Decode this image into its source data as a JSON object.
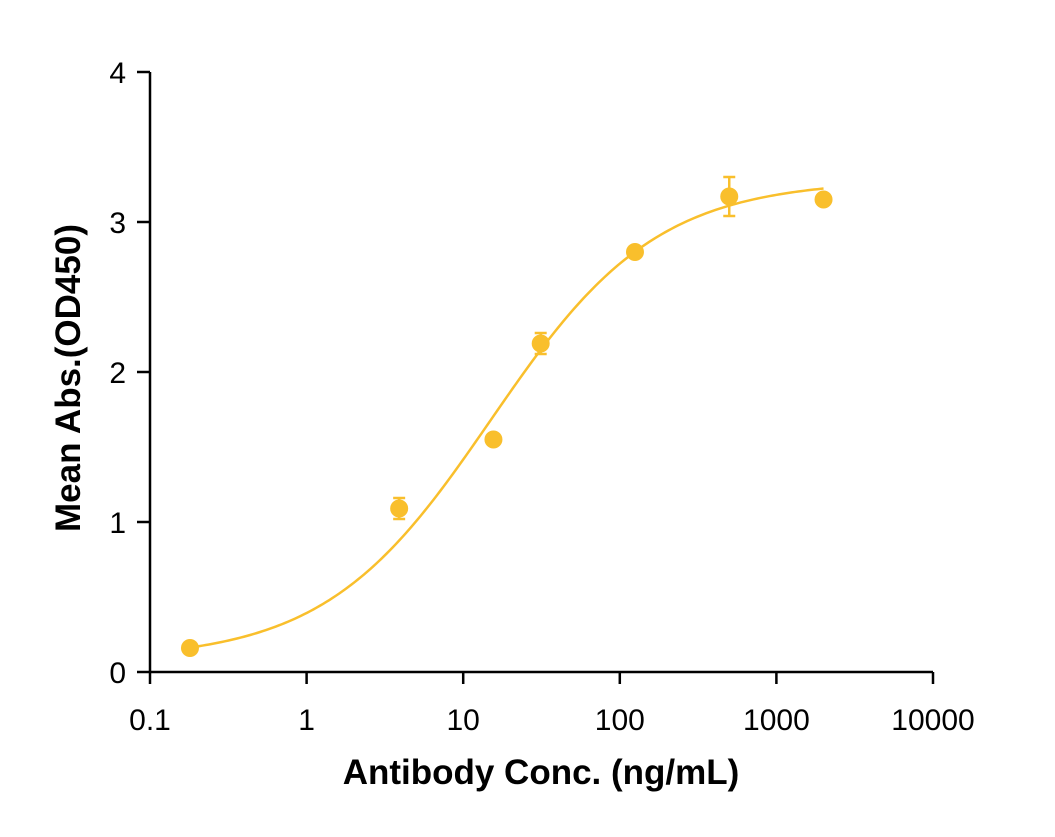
{
  "chart_data": {
    "type": "scatter",
    "title": "",
    "xlabel": "Antibody Conc. (ng/mL)",
    "ylabel": "Mean Abs.(OD450)",
    "x_scale": "log",
    "xlim": [
      0.1,
      10000
    ],
    "ylim": [
      0,
      4
    ],
    "x_ticks": [
      0.1,
      1,
      10,
      100,
      1000,
      10000
    ],
    "x_tick_labels": [
      "0.1",
      "1",
      "10",
      "100",
      "1000",
      "10000"
    ],
    "y_ticks": [
      0,
      1,
      2,
      3,
      4
    ],
    "y_tick_labels": [
      "0",
      "1",
      "2",
      "3",
      "4"
    ],
    "grid": false,
    "legend": "none",
    "color": "#F9BF2C",
    "series": [
      {
        "points": [
          {
            "x": 0.18,
            "y": 0.16,
            "err": 0.02
          },
          {
            "x": 3.9,
            "y": 1.09,
            "err": 0.07
          },
          {
            "x": 15.6,
            "y": 1.55,
            "err": 0.02
          },
          {
            "x": 31.25,
            "y": 2.19,
            "err": 0.07
          },
          {
            "x": 125,
            "y": 2.8,
            "err": 0.02
          },
          {
            "x": 500,
            "y": 3.17,
            "err": 0.13
          },
          {
            "x": 2000,
            "y": 3.15,
            "err": 0.02
          }
        ],
        "fit": {
          "model": "4PL",
          "bottom": 0.08,
          "top": 3.28,
          "ec50": 15,
          "hill": 0.82,
          "x_range": [
            0.18,
            2000
          ]
        }
      }
    ]
  }
}
